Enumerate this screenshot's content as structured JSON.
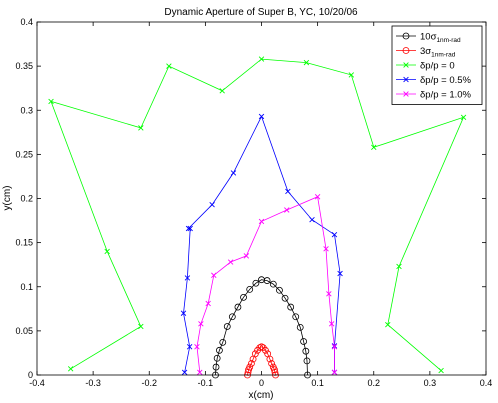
{
  "chart_data": {
    "type": "line",
    "title": "Dynamic Aperture of Super B, YC, 10/20/06",
    "xlabel": "x(cm)",
    "ylabel": "y(cm)",
    "xlim": [
      -0.4,
      0.4
    ],
    "ylim": [
      0,
      0.4
    ],
    "xticks": [
      "-0.4",
      "-0.3",
      "-0.2",
      "-0.1",
      "0",
      "0.1",
      "0.2",
      "0.3",
      "0.4"
    ],
    "yticks": [
      "0",
      "0.05",
      "0.1",
      "0.15",
      "0.2",
      "0.25",
      "0.3",
      "0.35",
      "0.4"
    ],
    "grid": false,
    "legend_position": "top-right",
    "series": [
      {
        "name": "10σ",
        "name_sub": "1nm-rad",
        "color": "#000000",
        "marker": "circle",
        "x": [
          -0.082,
          -0.081,
          -0.079,
          -0.075,
          -0.069,
          -0.061,
          -0.052,
          -0.042,
          -0.032,
          -0.021,
          -0.01,
          0,
          0.01,
          0.021,
          0.032,
          0.042,
          0.052,
          0.061,
          0.069,
          0.075,
          0.079,
          0.081,
          0.082
        ],
        "y": [
          0,
          0.009,
          0.019,
          0.028,
          0.037,
          0.055,
          0.066,
          0.077,
          0.088,
          0.097,
          0.104,
          0.108,
          0.107,
          0.103,
          0.096,
          0.087,
          0.077,
          0.066,
          0.054,
          0.038,
          0.027,
          0.016,
          0
        ]
      },
      {
        "name": "3σ",
        "name_sub": "1nm-rad",
        "color": "#ff0000",
        "marker": "circle",
        "x": [
          -0.025,
          -0.024,
          -0.023,
          -0.021,
          -0.018,
          -0.015,
          -0.011,
          -0.007,
          -0.003,
          0,
          0.003,
          0.007,
          0.011,
          0.015,
          0.018,
          0.021,
          0.023,
          0.024,
          0.025
        ],
        "y": [
          0,
          0.003,
          0.006,
          0.009,
          0.013,
          0.018,
          0.024,
          0.028,
          0.031,
          0.032,
          0.031,
          0.028,
          0.024,
          0.018,
          0.013,
          0.009,
          0.006,
          0.003,
          0
        ]
      },
      {
        "name": "δp/p = 0",
        "color": "#00ff00",
        "marker": "x",
        "x": [
          -0.34,
          -0.215,
          -0.275,
          -0.375,
          -0.215,
          -0.165,
          -0.07,
          0,
          0.08,
          0.16,
          0.2,
          0.36,
          0.245,
          0.225,
          0.32
        ],
        "y": [
          0.007,
          0.055,
          0.14,
          0.31,
          0.28,
          0.35,
          0.322,
          0.358,
          0.354,
          0.34,
          0.258,
          0.292,
          0.123,
          0.057,
          0.005
        ]
      },
      {
        "name": "δp/p = 0.5%",
        "color": "#0000ff",
        "marker": "x",
        "x": [
          -0.137,
          -0.128,
          -0.139,
          -0.132,
          -0.127,
          -0.13,
          -0.088,
          -0.05,
          0,
          0.047,
          0.09,
          0.13,
          0.14,
          0.13,
          0.13
        ],
        "y": [
          0.003,
          0.032,
          0.07,
          0.11,
          0.166,
          0.166,
          0.193,
          0.229,
          0.293,
          0.208,
          0.176,
          0.159,
          0.115,
          0.033,
          0.003
        ]
      },
      {
        "name": "δp/p = 1.0%",
        "color": "#ff00ff",
        "marker": "x",
        "x": [
          -0.11,
          -0.115,
          -0.108,
          -0.095,
          -0.085,
          -0.055,
          -0.027,
          0,
          0.045,
          0.1,
          0.115,
          0.12,
          0.125,
          0.13,
          0.13
        ],
        "y": [
          0.003,
          0.032,
          0.058,
          0.081,
          0.113,
          0.128,
          0.135,
          0.174,
          0.187,
          0.202,
          0.143,
          0.092,
          0.058,
          0.032,
          0.003
        ]
      }
    ]
  }
}
